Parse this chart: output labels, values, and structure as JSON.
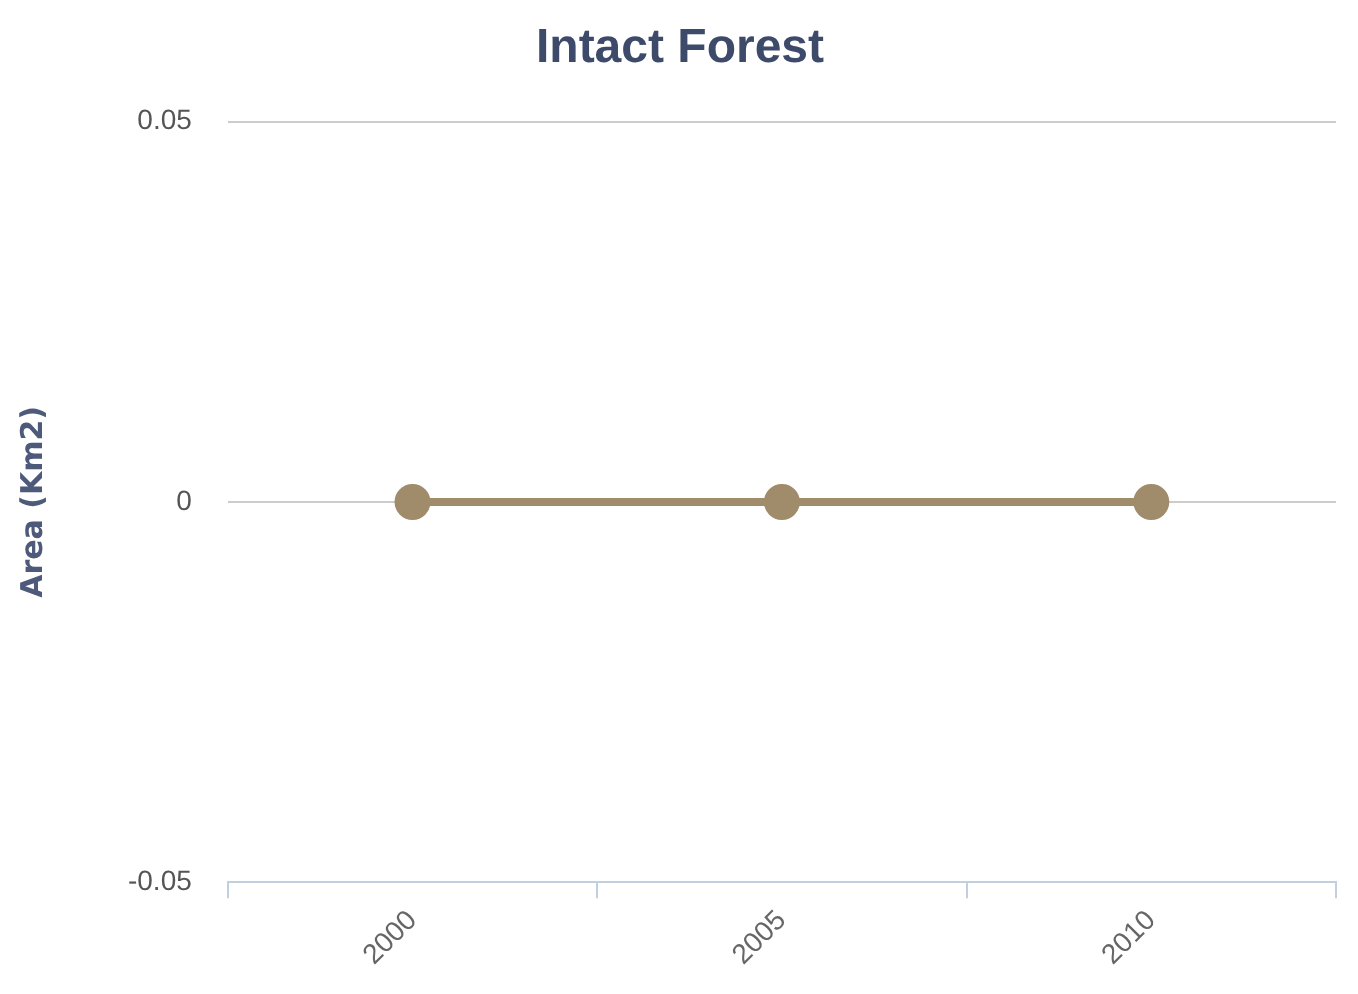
{
  "chart_data": {
    "type": "line",
    "title": "Intact Forest",
    "ylabel": "Area (Km2)",
    "categories": [
      "2000",
      "2005",
      "2010"
    ],
    "series": [
      {
        "color": "#a08c6a",
        "values": [
          0,
          0,
          0
        ]
      }
    ],
    "ylim": [
      -0.05,
      0.05
    ],
    "yticks": [
      -0.05,
      0,
      0.05
    ],
    "grid": "y",
    "legend": false,
    "marker": "circle",
    "line_style": "solid"
  }
}
